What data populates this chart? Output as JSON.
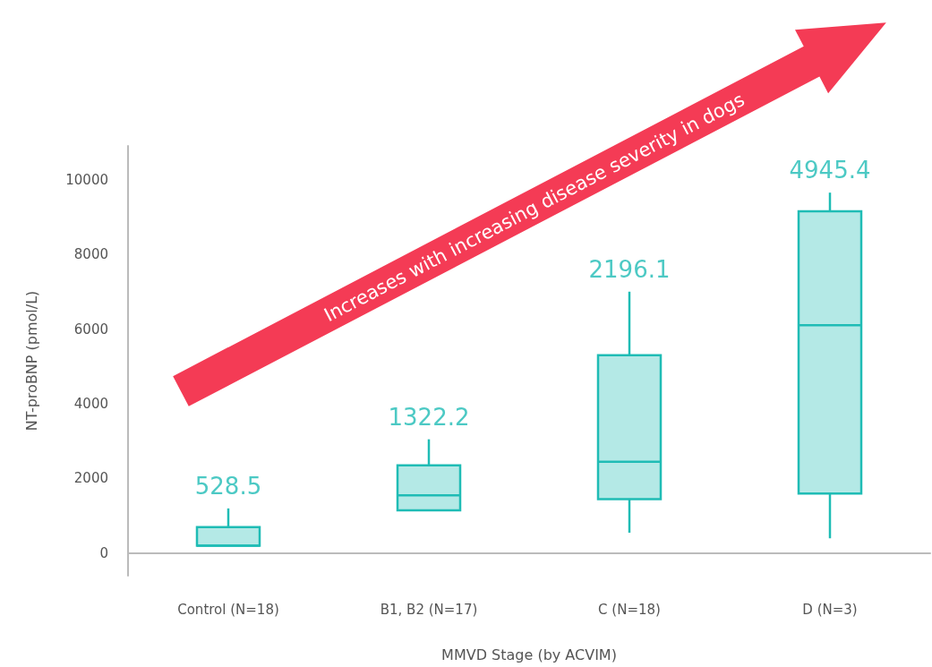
{
  "chart_data": {
    "type": "box",
    "xlabel": "MMVD Stage (by ACVIM)",
    "ylabel": "NT-proBNP (pmol/L)",
    "categories": [
      "Control (N=18)",
      "B1, B2 (N=17)",
      "C (N=18)",
      "D (N=3)"
    ],
    "series": [
      {
        "color": "#1fbcb5",
        "boxes": [
          {
            "low": 200,
            "q1": 200,
            "median": 200,
            "q3": 700,
            "high": 1200
          },
          {
            "low": 1150,
            "q1": 1150,
            "median": 1550,
            "q3": 2350,
            "high": 3050
          },
          {
            "low": 550,
            "q1": 1450,
            "median": 2450,
            "q3": 5300,
            "high": 7000
          },
          {
            "low": 400,
            "q1": 1600,
            "median": 6100,
            "q3": 9150,
            "high": 9650
          }
        ]
      }
    ],
    "ylim": [
      -600,
      10900
    ],
    "yticks": [
      0,
      2000,
      4000,
      6000,
      8000,
      10000
    ],
    "annotations": [
      "Increases with increasing disease severity in dogs",
      "528.5",
      "1322.2",
      "2196.1",
      "4945.4"
    ]
  }
}
